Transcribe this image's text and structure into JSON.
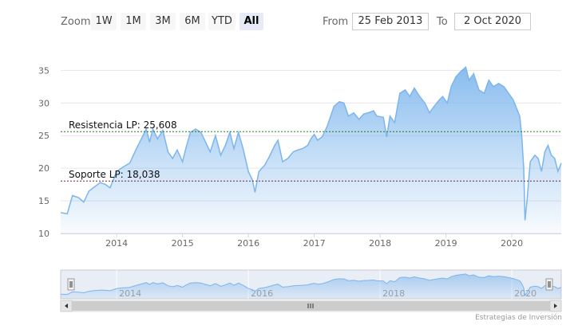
{
  "toolbar": {
    "zoom_label": "Zoom",
    "buttons": [
      "1W",
      "1M",
      "3M",
      "6M",
      "YTD",
      "All"
    ],
    "active_button": "All",
    "from_label": "From",
    "from_value": "25 Feb 2013",
    "to_label": "To",
    "to_value": "2 Oct 2020"
  },
  "credits": "Estrategias de Inversión",
  "colors": {
    "series_line": "#7cb5ec",
    "area_top": "#7cb5ec",
    "resistance_line": "#1e7a1e",
    "support_line": "#7a1e3a",
    "navigator_mask": "#ccd6eb"
  },
  "chart_data": {
    "type": "area",
    "title": "",
    "xlabel": "",
    "ylabel": "",
    "ylim": [
      10,
      37
    ],
    "yticks": [
      10,
      15,
      20,
      25,
      30,
      35
    ],
    "xlim": [
      2013.15,
      2020.75
    ],
    "xticks": [
      "2014",
      "2015",
      "2016",
      "2017",
      "2018",
      "2019",
      "2020"
    ],
    "navigator_ticks": [
      "2014",
      "2016",
      "2018",
      "2020"
    ],
    "grid": "horizontal",
    "series": [
      {
        "points": [
          [
            2013.15,
            13.2
          ],
          [
            2013.25,
            13.0
          ],
          [
            2013.33,
            15.8
          ],
          [
            2013.42,
            15.5
          ],
          [
            2013.5,
            14.8
          ],
          [
            2013.58,
            16.5
          ],
          [
            2013.67,
            17.2
          ],
          [
            2013.75,
            17.8
          ],
          [
            2013.83,
            17.5
          ],
          [
            2013.9,
            17.0
          ],
          [
            2014.0,
            19.5
          ],
          [
            2014.1,
            20.2
          ],
          [
            2014.2,
            20.8
          ],
          [
            2014.3,
            23.0
          ],
          [
            2014.4,
            25.0
          ],
          [
            2014.45,
            26.0
          ],
          [
            2014.5,
            24.0
          ],
          [
            2014.55,
            26.0
          ],
          [
            2014.62,
            24.5
          ],
          [
            2014.7,
            25.8
          ],
          [
            2014.78,
            22.5
          ],
          [
            2014.85,
            21.5
          ],
          [
            2014.92,
            22.8
          ],
          [
            2015.0,
            21.0
          ],
          [
            2015.05,
            23.0
          ],
          [
            2015.12,
            25.5
          ],
          [
            2015.2,
            26.0
          ],
          [
            2015.28,
            25.5
          ],
          [
            2015.35,
            24.0
          ],
          [
            2015.42,
            22.5
          ],
          [
            2015.5,
            25.0
          ],
          [
            2015.58,
            22.0
          ],
          [
            2015.65,
            23.5
          ],
          [
            2015.72,
            25.5
          ],
          [
            2015.78,
            23.0
          ],
          [
            2015.85,
            25.5
          ],
          [
            2015.92,
            23.0
          ],
          [
            2016.0,
            19.5
          ],
          [
            2016.06,
            18.2
          ],
          [
            2016.1,
            16.3
          ],
          [
            2016.16,
            19.5
          ],
          [
            2016.25,
            20.5
          ],
          [
            2016.32,
            21.8
          ],
          [
            2016.4,
            23.5
          ],
          [
            2016.45,
            24.3
          ],
          [
            2016.52,
            21.0
          ],
          [
            2016.6,
            21.5
          ],
          [
            2016.68,
            22.5
          ],
          [
            2016.75,
            22.8
          ],
          [
            2016.82,
            23.0
          ],
          [
            2016.9,
            23.5
          ],
          [
            2016.95,
            24.5
          ],
          [
            2017.0,
            25.2
          ],
          [
            2017.05,
            24.3
          ],
          [
            2017.12,
            24.8
          ],
          [
            2017.2,
            26.5
          ],
          [
            2017.3,
            29.5
          ],
          [
            2017.38,
            30.2
          ],
          [
            2017.45,
            30.0
          ],
          [
            2017.52,
            28.0
          ],
          [
            2017.6,
            28.5
          ],
          [
            2017.68,
            27.5
          ],
          [
            2017.75,
            28.3
          ],
          [
            2017.82,
            28.5
          ],
          [
            2017.9,
            28.8
          ],
          [
            2017.95,
            28.0
          ],
          [
            2018.05,
            27.8
          ],
          [
            2018.1,
            24.8
          ],
          [
            2018.15,
            28.0
          ],
          [
            2018.22,
            27.0
          ],
          [
            2018.3,
            31.5
          ],
          [
            2018.38,
            32.0
          ],
          [
            2018.45,
            31.0
          ],
          [
            2018.52,
            32.3
          ],
          [
            2018.6,
            31.0
          ],
          [
            2018.68,
            30.0
          ],
          [
            2018.75,
            28.5
          ],
          [
            2018.82,
            29.5
          ],
          [
            2018.9,
            30.5
          ],
          [
            2018.95,
            31.0
          ],
          [
            2019.02,
            30.0
          ],
          [
            2019.08,
            32.5
          ],
          [
            2019.15,
            34.0
          ],
          [
            2019.22,
            34.8
          ],
          [
            2019.3,
            35.5
          ],
          [
            2019.35,
            33.5
          ],
          [
            2019.42,
            34.5
          ],
          [
            2019.5,
            32.0
          ],
          [
            2019.58,
            31.5
          ],
          [
            2019.65,
            33.5
          ],
          [
            2019.72,
            32.5
          ],
          [
            2019.8,
            33.0
          ],
          [
            2019.88,
            32.5
          ],
          [
            2019.95,
            31.5
          ],
          [
            2020.02,
            30.5
          ],
          [
            2020.08,
            29.0
          ],
          [
            2020.12,
            28.0
          ],
          [
            2020.15,
            25.0
          ],
          [
            2020.18,
            20.0
          ],
          [
            2020.2,
            12.0
          ],
          [
            2020.23,
            15.0
          ],
          [
            2020.28,
            21.0
          ],
          [
            2020.35,
            22.0
          ],
          [
            2020.4,
            21.5
          ],
          [
            2020.45,
            19.5
          ],
          [
            2020.5,
            22.5
          ],
          [
            2020.55,
            23.5
          ],
          [
            2020.6,
            22.0
          ],
          [
            2020.65,
            21.5
          ],
          [
            2020.7,
            19.5
          ],
          [
            2020.75,
            20.8
          ]
        ]
      }
    ],
    "plot_lines": [
      {
        "label": "Resistencia LP: 25,608",
        "value": 25.608
      },
      {
        "label": "Soporte LP: 18,038",
        "value": 18.038
      }
    ]
  }
}
